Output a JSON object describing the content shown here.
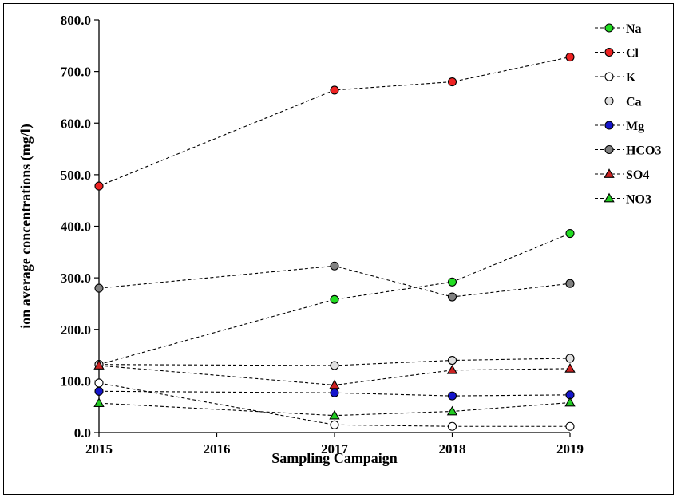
{
  "chart_data": {
    "type": "line",
    "title": "",
    "xlabel": "Sampling Campaign",
    "ylabel": "ion average concentrations (mg/l)",
    "xlim": [
      2015,
      2019
    ],
    "ylim": [
      0,
      800
    ],
    "x_ticks": [
      "2015",
      "2016",
      "2017",
      "2018",
      "2019"
    ],
    "y_ticks": [
      "0.0",
      "100.0",
      "200.0",
      "300.0",
      "400.0",
      "500.0",
      "600.0",
      "700.0",
      "800.0"
    ],
    "grid": false,
    "legend_position": "top-right",
    "x": [
      2015,
      2017,
      2018,
      2019
    ],
    "series": [
      {
        "name": "Na",
        "marker": "circle",
        "color": "#22dd22",
        "values": [
          132,
          258,
          292,
          386
        ]
      },
      {
        "name": "Cl",
        "marker": "circle",
        "color": "#ee2222",
        "values": [
          478,
          664,
          680,
          728
        ]
      },
      {
        "name": "K",
        "marker": "circle",
        "color": "#ffffff",
        "values": [
          96,
          15,
          12,
          12
        ]
      },
      {
        "name": "Ca",
        "marker": "circle",
        "color": "#e0e0e0",
        "values": [
          132,
          130,
          140,
          144
        ]
      },
      {
        "name": "Mg",
        "marker": "circle",
        "color": "#1515cc",
        "values": [
          80,
          77,
          71,
          73
        ]
      },
      {
        "name": "HCO3",
        "marker": "circle",
        "color": "#808080",
        "values": [
          280,
          323,
          263,
          289
        ]
      },
      {
        "name": "SO4",
        "marker": "triangle",
        "color": "#cc2222",
        "values": [
          130,
          92,
          121,
          124
        ]
      },
      {
        "name": "NO3",
        "marker": "triangle",
        "color": "#22cc22",
        "values": [
          57,
          33,
          41,
          58
        ]
      }
    ]
  }
}
